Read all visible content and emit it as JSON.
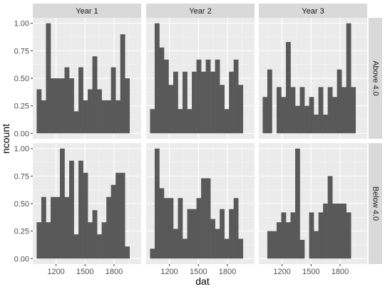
{
  "chart_data": {
    "type": "histogram",
    "xlabel": "dat",
    "ylabel": "ncount",
    "facet_columns": [
      "Year 1",
      "Year 2",
      "Year 3"
    ],
    "facet_rows": [
      "Above 4.0",
      "Below 4.0"
    ],
    "x_ticks": [
      1200,
      1500,
      1800
    ],
    "y_ticks": [
      0.0,
      0.25,
      0.5,
      0.75,
      1.0
    ],
    "y_tick_labels": [
      "0.00",
      "0.25",
      "0.50",
      "0.75",
      "1.00"
    ],
    "xlim": [
      960,
      2080
    ],
    "ylim": [
      -0.05,
      1.05
    ],
    "bin_start": 1000,
    "bin_width": 48,
    "colors": {
      "panel_background": "#ebebeb",
      "grid_major": "#ffffff",
      "grid_minor": "#f5f5f5",
      "strip_background": "#d9d9d9",
      "bar_fill": "#595959"
    },
    "panels": [
      {
        "row": "Above 4.0",
        "col": "Year 1",
        "values": [
          0.4,
          0.3,
          1.0,
          0.5,
          0.5,
          0.5,
          0.6,
          0.5,
          0.2,
          0.6,
          0.3,
          0.4,
          0.7,
          0.4,
          0.3,
          0.3,
          0.6,
          0.3,
          0.9,
          0.5
        ]
      },
      {
        "row": "Above 4.0",
        "col": "Year 2",
        "values": [
          0.22,
          1.0,
          0.78,
          0.67,
          0.44,
          0.56,
          0.22,
          0.56,
          0.22,
          0.56,
          0.67,
          0.56,
          0.67,
          0.56,
          0.67,
          0.44,
          0.22,
          0.56,
          0.67,
          0.44
        ]
      },
      {
        "row": "Above 4.0",
        "col": "Year 3",
        "values": [
          0.33,
          0.58,
          0.0,
          0.42,
          0.33,
          0.83,
          0.42,
          0.25,
          0.42,
          0.25,
          0.33,
          0.17,
          0.42,
          0.17,
          0.42,
          0.33,
          0.58,
          0.42,
          1.0,
          0.42
        ]
      },
      {
        "row": "Below 4.0",
        "col": "Year 1",
        "values": [
          0.33,
          0.56,
          0.33,
          0.56,
          0.56,
          1.0,
          0.56,
          0.89,
          0.22,
          0.89,
          0.78,
          0.33,
          0.44,
          0.22,
          0.33,
          0.56,
          0.67,
          0.78,
          0.78,
          0.11
        ]
      },
      {
        "row": "Below 4.0",
        "col": "Year 2",
        "values": [
          0.09,
          1.0,
          0.64,
          0.55,
          0.55,
          0.27,
          0.55,
          0.18,
          0.45,
          0.45,
          0.55,
          0.73,
          0.73,
          0.36,
          0.27,
          0.45,
          0.18,
          0.45,
          0.55,
          0.18
        ]
      },
      {
        "row": "Below 4.0",
        "col": "Year 3",
        "values": [
          0.0,
          0.25,
          0.25,
          0.33,
          0.42,
          0.33,
          0.42,
          1.0,
          0.17,
          0.0,
          0.42,
          0.25,
          0.42,
          0.5,
          0.75,
          0.5,
          0.5,
          0.5,
          0.42,
          0.0
        ]
      }
    ]
  }
}
